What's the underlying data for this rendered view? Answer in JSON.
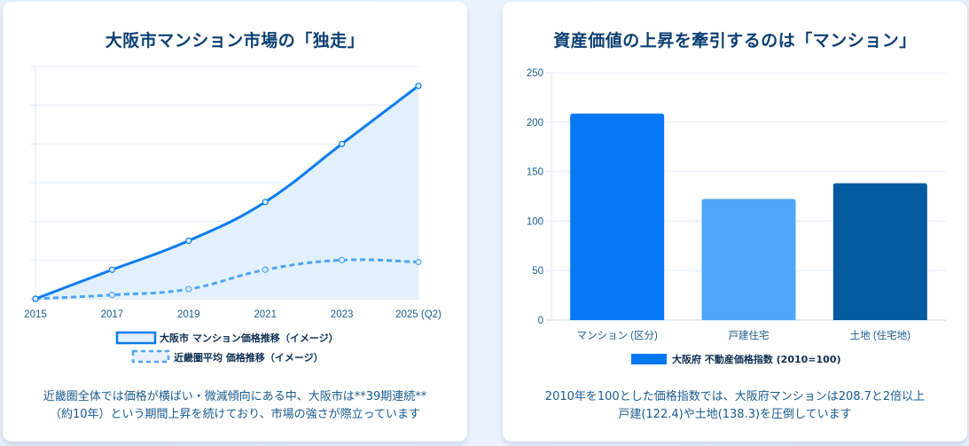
{
  "left_card": {
    "title": "大阪市マンション市場の「独走」",
    "caption_line1": "近畿圏全体では価格が横ばい・微減傾向にある中、大阪市は**39期連続**",
    "caption_line2": "（約10年）という期間上昇を続けており、市場の強さが際立っています"
  },
  "right_card": {
    "title": "資産価値の上昇を牽引するのは「マンション」",
    "caption_line1": "2010年を100とした価格指数では、大阪府マンションは208.7と2倍以上",
    "caption_line2": "戸建(122.4)や土地(138.3)を圧倒しています"
  },
  "chart_data": [
    {
      "type": "line",
      "title": "大阪市マンション市場の「独走」",
      "x": [
        "2015",
        "2017",
        "2019",
        "2021",
        "2023",
        "2025 (Q2)"
      ],
      "ylim": [
        100,
        160
      ],
      "y_ticks_shown": false,
      "grid": true,
      "legend_position": "bottom",
      "series": [
        {
          "name": "大阪市 マンション価格推移（イメージ）",
          "values": [
            100,
            107.5,
            115,
            125,
            140,
            155
          ],
          "color": "#0a7cf0",
          "fill": "#e2f0fd",
          "style": "solid"
        },
        {
          "name": "近畿圏平均 価格推移（イメージ）",
          "values": [
            100,
            101,
            102.5,
            107.5,
            110,
            109.5
          ],
          "color": "#4da3f5",
          "style": "dashed"
        }
      ]
    },
    {
      "type": "bar",
      "title": "資産価値の上昇を牽引するのは「マンション」",
      "categories": [
        "マンション (区分)",
        "戸建住宅",
        "土地 (住宅地)"
      ],
      "values": [
        208.7,
        122.4,
        138.3
      ],
      "colors": [
        "#0577f7",
        "#4ea7fb",
        "#035a9e"
      ],
      "ylim": [
        0,
        250
      ],
      "y_ticks": [
        "0",
        "50",
        "100",
        "150",
        "200",
        "250"
      ],
      "grid": true,
      "legend_position": "bottom",
      "legend": "大阪府 不動産価格指数 (2010=100)",
      "legend_color": "#0577f7"
    }
  ]
}
